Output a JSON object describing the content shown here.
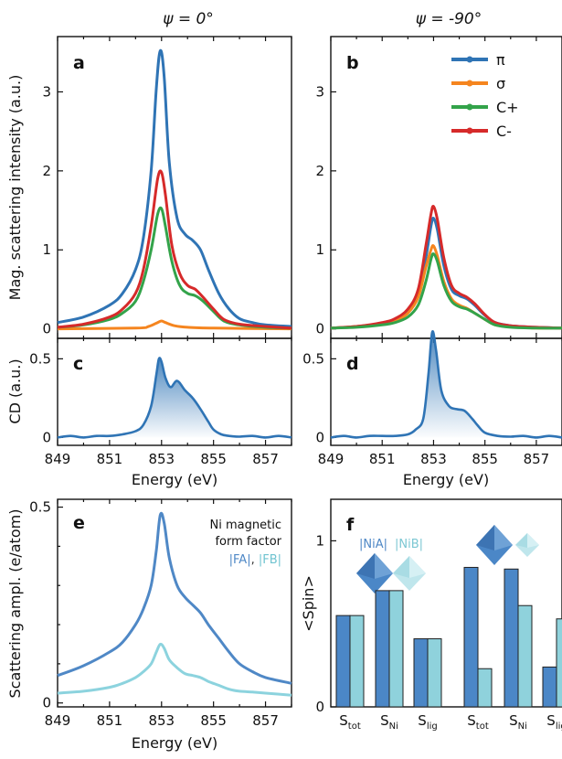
{
  "chart_data": [
    {
      "panel": "a",
      "header": "ψ = 0°",
      "type": "line",
      "ylabel": "Mag. scattering intensity (a.u.)",
      "ylim": [
        -0.12,
        3.7
      ],
      "xlim": [
        849,
        858
      ],
      "yticks": [
        "0",
        "1",
        "2",
        "3"
      ],
      "series": [
        {
          "name": "π",
          "color": "#2F74B5",
          "x": [
            849,
            850,
            851,
            851.5,
            852,
            852.3,
            852.6,
            852.8,
            852.95,
            853.1,
            853.3,
            853.6,
            853.9,
            854.2,
            854.5,
            854.8,
            855.2,
            855.6,
            856,
            856.5,
            857,
            858
          ],
          "y": [
            0.08,
            0.15,
            0.3,
            0.45,
            0.75,
            1.15,
            2.0,
            3.05,
            3.52,
            3.2,
            2.1,
            1.4,
            1.2,
            1.12,
            1.0,
            0.75,
            0.45,
            0.25,
            0.13,
            0.08,
            0.05,
            0.03
          ]
        },
        {
          "name": "σ",
          "color": "#F5851F",
          "x": [
            849,
            852,
            852.5,
            852.85,
            853,
            853.15,
            853.5,
            854,
            855,
            858
          ],
          "y": [
            0,
            0.01,
            0.03,
            0.08,
            0.1,
            0.08,
            0.04,
            0.02,
            0.01,
            0
          ]
        },
        {
          "name": "C+",
          "color": "#33A34A",
          "x": [
            849,
            850,
            851,
            851.5,
            852,
            852.3,
            852.6,
            852.85,
            853,
            853.15,
            853.4,
            853.7,
            854,
            854.3,
            854.6,
            855,
            855.4,
            856,
            857,
            858
          ],
          "y": [
            0.02,
            0.05,
            0.12,
            0.2,
            0.35,
            0.6,
            1.0,
            1.45,
            1.52,
            1.3,
            0.85,
            0.55,
            0.45,
            0.42,
            0.35,
            0.22,
            0.1,
            0.05,
            0.02,
            0.01
          ]
        },
        {
          "name": "C-",
          "color": "#D62A2A",
          "x": [
            849,
            850,
            851,
            851.5,
            852,
            852.3,
            852.6,
            852.85,
            853,
            853.15,
            853.4,
            853.7,
            854,
            854.3,
            854.6,
            855,
            855.4,
            856,
            857,
            858
          ],
          "y": [
            0.02,
            0.06,
            0.15,
            0.25,
            0.45,
            0.75,
            1.3,
            1.9,
            1.98,
            1.7,
            1.05,
            0.7,
            0.55,
            0.5,
            0.4,
            0.25,
            0.12,
            0.06,
            0.03,
            0.01
          ]
        }
      ]
    },
    {
      "panel": "b",
      "header": "ψ = -90°",
      "type": "line",
      "ylim": [
        -0.12,
        3.7
      ],
      "xlim": [
        849,
        858
      ],
      "yticks": [
        "0",
        "1",
        "2",
        "3"
      ],
      "legend": "top-right",
      "series": [
        {
          "name": "π",
          "color": "#2F74B5",
          "x": [
            849,
            850,
            851,
            851.5,
            852,
            852.4,
            852.7,
            852.9,
            853,
            853.15,
            853.4,
            853.7,
            854,
            854.3,
            854.6,
            855,
            855.4,
            856,
            857,
            858
          ],
          "y": [
            0.01,
            0.03,
            0.07,
            0.12,
            0.22,
            0.45,
            0.9,
            1.3,
            1.4,
            1.25,
            0.8,
            0.5,
            0.42,
            0.38,
            0.3,
            0.17,
            0.08,
            0.04,
            0.02,
            0.01
          ]
        },
        {
          "name": "σ",
          "color": "#F5851F",
          "x": [
            849,
            850,
            851,
            851.5,
            852,
            852.4,
            852.7,
            852.9,
            853,
            853.15,
            853.4,
            853.7,
            854,
            854.3,
            854.6,
            855,
            855.4,
            856,
            857,
            858
          ],
          "y": [
            0.01,
            0.03,
            0.06,
            0.1,
            0.2,
            0.4,
            0.78,
            1.0,
            1.05,
            0.92,
            0.6,
            0.38,
            0.3,
            0.26,
            0.2,
            0.12,
            0.05,
            0.03,
            0.01,
            0.01
          ]
        },
        {
          "name": "C+",
          "color": "#33A34A",
          "x": [
            849,
            850,
            851,
            851.5,
            852,
            852.4,
            852.7,
            852.9,
            853,
            853.15,
            853.4,
            853.7,
            854,
            854.3,
            854.6,
            855,
            855.4,
            856,
            857,
            858
          ],
          "y": [
            0.01,
            0.02,
            0.05,
            0.08,
            0.15,
            0.3,
            0.6,
            0.88,
            0.95,
            0.85,
            0.55,
            0.35,
            0.28,
            0.25,
            0.2,
            0.12,
            0.05,
            0.02,
            0.01,
            0.01
          ]
        },
        {
          "name": "C-",
          "color": "#D62A2A",
          "x": [
            849,
            850,
            851,
            851.5,
            852,
            852.4,
            852.7,
            852.9,
            853,
            853.15,
            853.4,
            853.7,
            854,
            854.3,
            854.6,
            855,
            855.4,
            856,
            857,
            858
          ],
          "y": [
            0.01,
            0.03,
            0.08,
            0.13,
            0.25,
            0.5,
            1.05,
            1.45,
            1.55,
            1.38,
            0.9,
            0.55,
            0.45,
            0.4,
            0.32,
            0.18,
            0.08,
            0.04,
            0.02,
            0.01
          ]
        }
      ]
    },
    {
      "panel": "c",
      "type": "area",
      "ylabel": "CD (a.u.)",
      "ylim": [
        -0.05,
        0.63
      ],
      "xlim": [
        849,
        858
      ],
      "xlabel": "Energy (eV)",
      "xticks": [
        "849",
        "851",
        "853",
        "855",
        "857"
      ],
      "yticks": [
        "0",
        "0.5"
      ],
      "series": [
        {
          "name": "",
          "color": "#2F74B5",
          "x": [
            849,
            849.5,
            850,
            850.5,
            851,
            851.5,
            852,
            852.3,
            852.6,
            852.8,
            852.9,
            853,
            853.15,
            853.35,
            853.6,
            853.9,
            854.2,
            854.5,
            854.8,
            855,
            855.3,
            855.6,
            856,
            856.5,
            857,
            857.5,
            858
          ],
          "y": [
            0.0,
            0.01,
            0.0,
            0.01,
            0.01,
            0.02,
            0.04,
            0.08,
            0.2,
            0.4,
            0.5,
            0.48,
            0.38,
            0.32,
            0.36,
            0.3,
            0.25,
            0.18,
            0.1,
            0.05,
            0.02,
            0.01,
            0.005,
            0.01,
            0.0,
            0.01,
            0.0
          ]
        }
      ]
    },
    {
      "panel": "d",
      "type": "area",
      "ylim": [
        -0.05,
        0.63
      ],
      "xlim": [
        849,
        858
      ],
      "xlabel": "Energy (eV)",
      "xticks": [
        "849",
        "851",
        "853",
        "855",
        "857"
      ],
      "yticks": [
        "0",
        "0.5"
      ],
      "series": [
        {
          "name": "",
          "color": "#2F74B5",
          "x": [
            849,
            849.5,
            850,
            850.5,
            851,
            851.5,
            852,
            852.3,
            852.6,
            852.8,
            852.95,
            853.1,
            853.3,
            853.6,
            853.9,
            854.2,
            854.5,
            854.7,
            855,
            855.5,
            856,
            856.5,
            857,
            857.5,
            858
          ],
          "y": [
            0.0,
            0.01,
            0.0,
            0.01,
            0.01,
            0.01,
            0.02,
            0.05,
            0.12,
            0.4,
            0.67,
            0.55,
            0.3,
            0.2,
            0.18,
            0.17,
            0.12,
            0.08,
            0.03,
            0.01,
            0.005,
            0.01,
            0.0,
            0.01,
            0.0
          ]
        }
      ]
    },
    {
      "panel": "e",
      "type": "line",
      "ylabel": "Scattering ampl. (e/atom)",
      "xlabel": "Energy (eV)",
      "ylim": [
        -0.01,
        0.52
      ],
      "xlim": [
        849,
        858
      ],
      "xticks": [
        "849",
        "851",
        "853",
        "855",
        "857"
      ],
      "yticks": [
        "0",
        "0.5"
      ],
      "annotation": [
        "Ni magnetic",
        "form factor"
      ],
      "annotation_labels": [
        "|FA|",
        "|FB|"
      ],
      "series": [
        {
          "name": "|FA|",
          "color": "#4F88C6",
          "x": [
            849,
            850,
            851,
            851.5,
            852,
            852.3,
            852.6,
            852.8,
            852.95,
            853.1,
            853.3,
            853.6,
            853.9,
            854.2,
            854.5,
            854.8,
            855.2,
            855.6,
            856,
            856.5,
            857,
            858
          ],
          "y": [
            0.07,
            0.095,
            0.13,
            0.155,
            0.2,
            0.24,
            0.3,
            0.39,
            0.48,
            0.46,
            0.37,
            0.3,
            0.27,
            0.25,
            0.23,
            0.2,
            0.165,
            0.13,
            0.1,
            0.08,
            0.065,
            0.05
          ]
        },
        {
          "name": "|FB|",
          "color": "#8CD3DE",
          "x": [
            849,
            850,
            851,
            851.5,
            852,
            852.3,
            852.6,
            852.8,
            852.95,
            853.1,
            853.3,
            853.6,
            853.9,
            854.2,
            854.5,
            854.8,
            855.2,
            855.6,
            856,
            856.5,
            857,
            858
          ],
          "y": [
            0.025,
            0.03,
            0.04,
            0.05,
            0.065,
            0.08,
            0.1,
            0.13,
            0.15,
            0.14,
            0.11,
            0.09,
            0.075,
            0.07,
            0.065,
            0.055,
            0.045,
            0.035,
            0.03,
            0.028,
            0.025,
            0.02
          ]
        }
      ]
    },
    {
      "panel": "f",
      "type": "bar",
      "ylabel": "<Spin>",
      "ylim": [
        0,
        1.25
      ],
      "yticks": [
        "0",
        "1"
      ],
      "categories": [
        "S_tot",
        "S_Ni",
        "S_lig",
        "S_tot",
        "S_Ni",
        "S_lig"
      ],
      "category_main": [
        "S",
        "S",
        "S",
        "S",
        "S",
        "S"
      ],
      "category_sub": [
        "tot",
        "Ni",
        "lig",
        "tot",
        "Ni",
        "lig"
      ],
      "legend_labels": [
        "|NiA|",
        "|NiB|"
      ],
      "series": [
        {
          "name": "|NiA|",
          "color": "#4B87C7",
          "values": [
            0.55,
            0.7,
            0.41,
            0.84,
            0.83,
            0.24
          ]
        },
        {
          "name": "|NiB|",
          "color": "#8FD2DC",
          "values": [
            0.55,
            0.7,
            0.41,
            0.23,
            0.61,
            0.53
          ]
        }
      ]
    }
  ]
}
